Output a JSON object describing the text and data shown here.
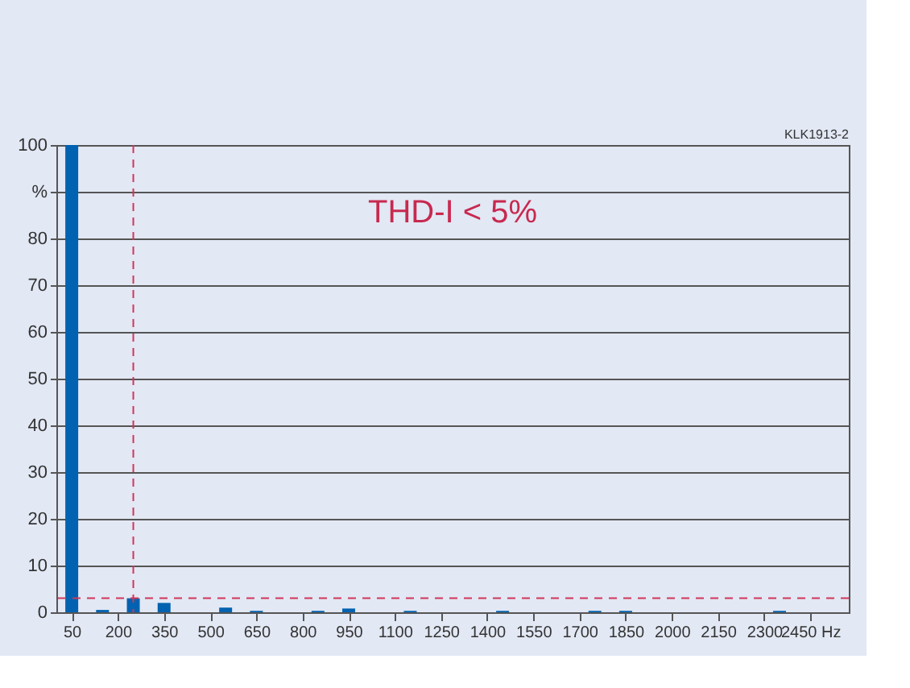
{
  "chart_data": {
    "type": "bar",
    "x": [
      50,
      150,
      250,
      350,
      550,
      650,
      850,
      950,
      1150,
      1450,
      1750,
      1850,
      2350
    ],
    "series": [
      {
        "color": "#0062b0",
        "values": [
          100,
          0.5,
          3,
          2,
          1,
          0.3,
          0.3,
          0.8,
          0.3,
          0.3,
          0.3,
          0.3,
          0.3
        ]
      }
    ],
    "xlim": [
      0,
      2575
    ],
    "xticks": [
      50,
      200,
      350,
      500,
      650,
      800,
      950,
      1100,
      1250,
      1400,
      1550,
      1700,
      1850,
      2000,
      2150,
      2300,
      {
        "value": 2450,
        "label": "2450 Hz"
      }
    ],
    "ylim": [
      0,
      100
    ],
    "yticks": [
      0,
      10,
      20,
      30,
      40,
      50,
      60,
      70,
      80,
      {
        "value": 90,
        "label": "%"
      },
      100
    ],
    "grid": "y",
    "ref_lines": [
      {
        "axis": "x",
        "value": 250,
        "color": "#d0365a",
        "line_style": "dashed"
      },
      {
        "axis": "y",
        "value": 3,
        "color": "#d0365a",
        "line_style": "dashed"
      }
    ],
    "annotations": [
      "THD-I < 5%",
      "KLK1913-2"
    ]
  }
}
